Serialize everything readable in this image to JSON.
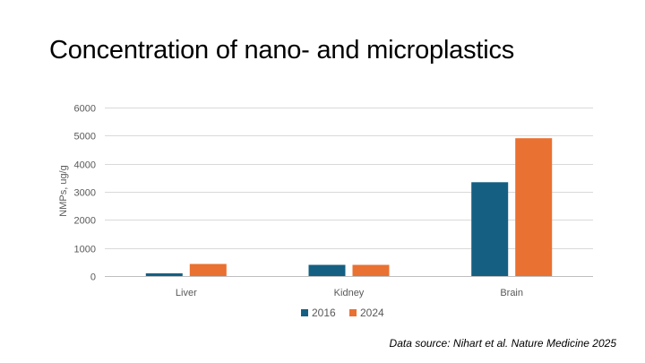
{
  "slide": {
    "title": "Concentration of nano- and microplastics",
    "source": "Data source: Nihart et al. Nature Medicine 2025"
  },
  "chart_data": {
    "type": "bar",
    "categories": [
      "Liver",
      "Kidney",
      "Brain"
    ],
    "series": [
      {
        "name": "2016",
        "values": [
          100,
          400,
          3340
        ],
        "color": "#156082"
      },
      {
        "name": "2024",
        "values": [
          430,
          400,
          4910
        ],
        "color": "#E97132"
      }
    ],
    "ylabel": "NMPs, ug/g",
    "xlabel": "",
    "ylim": [
      0,
      6000
    ],
    "yticks": [
      "0",
      "1000",
      "2000",
      "3000",
      "4000",
      "5000",
      "6000"
    ],
    "grid": true,
    "legend": "bottom-center"
  }
}
